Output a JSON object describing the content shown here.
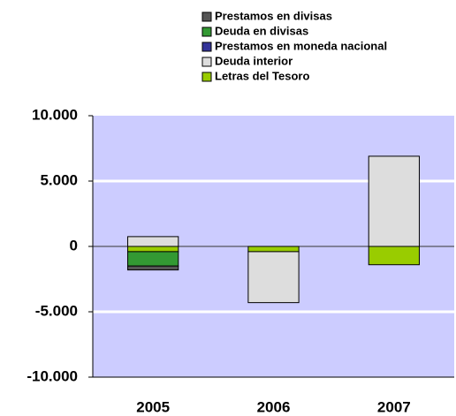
{
  "chart_data": {
    "type": "bar",
    "stacked": true,
    "categories": [
      "2005",
      "2006",
      "2007"
    ],
    "series": [
      {
        "name": "Prestamos en divisas",
        "color": "#555555",
        "values": [
          -300,
          0,
          0
        ]
      },
      {
        "name": "Deuda en divisas",
        "color": "#339933",
        "values": [
          -1100,
          0,
          0
        ]
      },
      {
        "name": "Prestamos en moneda nacional",
        "color": "#333399",
        "values": [
          0,
          0,
          0
        ]
      },
      {
        "name": "Deuda interior",
        "color": "#dddddd",
        "values": [
          750,
          -3900,
          6900
        ]
      },
      {
        "name": "Letras del  Tesoro",
        "color": "#99cc00",
        "values": [
          -400,
          -400,
          -1400
        ]
      }
    ],
    "ylim": [
      -10000,
      10000
    ],
    "yticks": [
      {
        "value": -10000,
        "label": "-10.000"
      },
      {
        "value": -5000,
        "label": "-5.000"
      },
      0,
      {
        "value": 5000,
        "label": "5.000"
      },
      {
        "value": 10000,
        "label": "10.000"
      }
    ],
    "grid": true,
    "legend": "top"
  }
}
